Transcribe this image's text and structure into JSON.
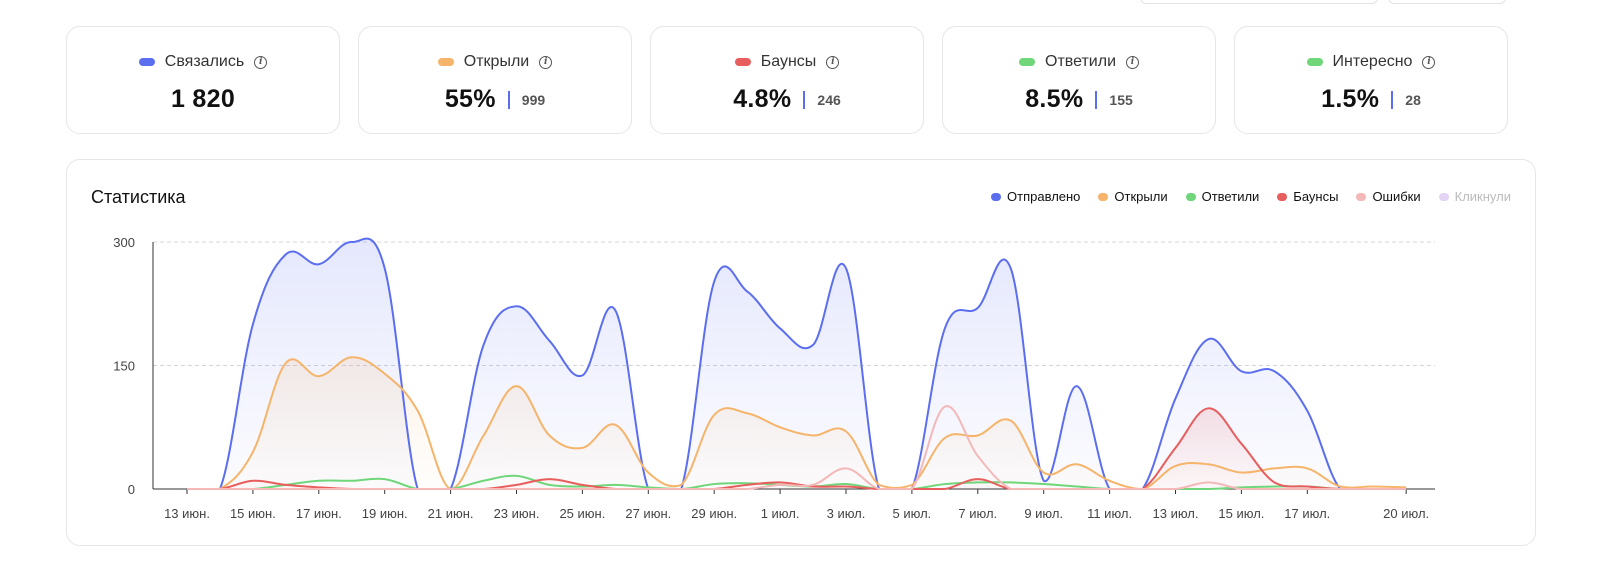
{
  "cards": [
    {
      "label": "Связались",
      "color": "#5b6ef0",
      "value": "1 820",
      "count": ""
    },
    {
      "label": "Открыли",
      "color": "#f5b46a",
      "value": "55%",
      "count": "999"
    },
    {
      "label": "Баунсы",
      "color": "#e85d5d",
      "value": "4.8%",
      "count": "246"
    },
    {
      "label": "Ответили",
      "color": "#6fd67a",
      "value": "8.5%",
      "count": "155"
    },
    {
      "label": "Интересно",
      "color": "#6fd67a",
      "value": "1.5%",
      "count": "28"
    }
  ],
  "panel": {
    "title": "Статистика"
  },
  "chart_data": {
    "type": "area",
    "title": "Статистика",
    "ylim": [
      0,
      300
    ],
    "y_ticks": [
      "0",
      "150",
      "300"
    ],
    "x_tick_labels": [
      "13 июн.",
      "15 июн.",
      "17 июн.",
      "19 июн.",
      "21 июн.",
      "23 июн.",
      "25 июн.",
      "27 июн.",
      "29 июн.",
      "1 июл.",
      "3 июл.",
      "5 июл.",
      "7 июл.",
      "9 июл.",
      "11 июл.",
      "13 июл.",
      "15 июл.",
      "17 июл.",
      "20 июл."
    ],
    "x_tick_days": [
      0,
      2,
      4,
      6,
      8,
      10,
      12,
      14,
      16,
      18,
      20,
      22,
      24,
      26,
      28,
      30,
      32,
      34,
      37
    ],
    "x_day_range": [
      0,
      37.8
    ],
    "grid": true,
    "legend_position": "top-right",
    "legend": [
      {
        "name": "Отправлено",
        "color": "#5b6ef0",
        "muted": false
      },
      {
        "name": "Открыли",
        "color": "#f5b46a",
        "muted": false
      },
      {
        "name": "Ответили",
        "color": "#6fd67a",
        "muted": false
      },
      {
        "name": "Баунсы",
        "color": "#e85d5d",
        "muted": false
      },
      {
        "name": "Ошибки",
        "color": "#f4b8b8",
        "muted": false
      },
      {
        "name": "Кликнули",
        "color": "#e3d3f5",
        "muted": true
      }
    ],
    "series": [
      {
        "name": "Отправлено",
        "color": "#5b6ef0",
        "fill": true,
        "points": [
          [
            0,
            0
          ],
          [
            1,
            0
          ],
          [
            2,
            200
          ],
          [
            3,
            285
          ],
          [
            4,
            273
          ],
          [
            5,
            300
          ],
          [
            6,
            268
          ],
          [
            7,
            0
          ],
          [
            8,
            0
          ],
          [
            9,
            175
          ],
          [
            10,
            222
          ],
          [
            11,
            180
          ],
          [
            12,
            138
          ],
          [
            13,
            217
          ],
          [
            14,
            0
          ],
          [
            15,
            0
          ],
          [
            16,
            252
          ],
          [
            17,
            240
          ],
          [
            18,
            195
          ],
          [
            19,
            175
          ],
          [
            20,
            268
          ],
          [
            21,
            0
          ],
          [
            22,
            0
          ],
          [
            23,
            195
          ],
          [
            24,
            220
          ],
          [
            25,
            268
          ],
          [
            26,
            10
          ],
          [
            27,
            125
          ],
          [
            28,
            0
          ],
          [
            29,
            0
          ],
          [
            30,
            110
          ],
          [
            31,
            182
          ],
          [
            32,
            143
          ],
          [
            33,
            143
          ],
          [
            34,
            95
          ],
          [
            35,
            0
          ],
          [
            36,
            0
          ],
          [
            37,
            0
          ]
        ]
      },
      {
        "name": "Открыли",
        "color": "#f5b46a",
        "fill": true,
        "points": [
          [
            0,
            0
          ],
          [
            1,
            0
          ],
          [
            2,
            45
          ],
          [
            3,
            153
          ],
          [
            4,
            137
          ],
          [
            5,
            160
          ],
          [
            6,
            140
          ],
          [
            7,
            95
          ],
          [
            8,
            0
          ],
          [
            9,
            65
          ],
          [
            10,
            125
          ],
          [
            11,
            65
          ],
          [
            12,
            50
          ],
          [
            13,
            78
          ],
          [
            14,
            20
          ],
          [
            15,
            5
          ],
          [
            16,
            90
          ],
          [
            17,
            92
          ],
          [
            18,
            75
          ],
          [
            19,
            65
          ],
          [
            20,
            70
          ],
          [
            21,
            5
          ],
          [
            22,
            5
          ],
          [
            23,
            62
          ],
          [
            24,
            65
          ],
          [
            25,
            83
          ],
          [
            26,
            20
          ],
          [
            27,
            30
          ],
          [
            28,
            10
          ],
          [
            29,
            0
          ],
          [
            30,
            28
          ],
          [
            31,
            30
          ],
          [
            32,
            20
          ],
          [
            33,
            25
          ],
          [
            34,
            25
          ],
          [
            35,
            3
          ],
          [
            36,
            3
          ],
          [
            37,
            2
          ]
        ]
      },
      {
        "name": "Ответили",
        "color": "#6fd67a",
        "fill": false,
        "points": [
          [
            0,
            0
          ],
          [
            1,
            0
          ],
          [
            2,
            0
          ],
          [
            3,
            5
          ],
          [
            4,
            10
          ],
          [
            5,
            10
          ],
          [
            6,
            12
          ],
          [
            7,
            0
          ],
          [
            8,
            0
          ],
          [
            9,
            10
          ],
          [
            10,
            16
          ],
          [
            11,
            5
          ],
          [
            12,
            3
          ],
          [
            13,
            5
          ],
          [
            14,
            2
          ],
          [
            15,
            0
          ],
          [
            16,
            6
          ],
          [
            17,
            7
          ],
          [
            18,
            5
          ],
          [
            19,
            3
          ],
          [
            20,
            6
          ],
          [
            21,
            0
          ],
          [
            22,
            0
          ],
          [
            23,
            6
          ],
          [
            24,
            8
          ],
          [
            25,
            8
          ],
          [
            26,
            6
          ],
          [
            27,
            3
          ],
          [
            28,
            0
          ],
          [
            29,
            0
          ],
          [
            30,
            0
          ],
          [
            31,
            0
          ],
          [
            32,
            2
          ],
          [
            33,
            3
          ],
          [
            34,
            3
          ],
          [
            35,
            0
          ],
          [
            36,
            0
          ],
          [
            37,
            0
          ]
        ]
      },
      {
        "name": "Баунсы",
        "color": "#e85d5d",
        "fill": true,
        "points": [
          [
            0,
            0
          ],
          [
            1,
            0
          ],
          [
            2,
            10
          ],
          [
            3,
            5
          ],
          [
            4,
            2
          ],
          [
            5,
            0
          ],
          [
            6,
            0
          ],
          [
            7,
            0
          ],
          [
            8,
            0
          ],
          [
            9,
            0
          ],
          [
            10,
            5
          ],
          [
            11,
            12
          ],
          [
            12,
            5
          ],
          [
            13,
            0
          ],
          [
            14,
            0
          ],
          [
            15,
            0
          ],
          [
            16,
            0
          ],
          [
            17,
            5
          ],
          [
            18,
            8
          ],
          [
            19,
            3
          ],
          [
            20,
            3
          ],
          [
            21,
            0
          ],
          [
            22,
            0
          ],
          [
            23,
            0
          ],
          [
            24,
            12
          ],
          [
            25,
            0
          ],
          [
            26,
            0
          ],
          [
            27,
            0
          ],
          [
            28,
            0
          ],
          [
            29,
            0
          ],
          [
            30,
            50
          ],
          [
            31,
            98
          ],
          [
            32,
            55
          ],
          [
            33,
            8
          ],
          [
            34,
            3
          ],
          [
            35,
            0
          ],
          [
            36,
            0
          ],
          [
            37,
            0
          ]
        ]
      },
      {
        "name": "Ошибки",
        "color": "#f4b8b8",
        "fill": false,
        "points": [
          [
            0,
            0
          ],
          [
            1,
            0
          ],
          [
            2,
            0
          ],
          [
            3,
            0
          ],
          [
            4,
            0
          ],
          [
            5,
            0
          ],
          [
            6,
            0
          ],
          [
            7,
            0
          ],
          [
            8,
            0
          ],
          [
            9,
            0
          ],
          [
            10,
            0
          ],
          [
            11,
            0
          ],
          [
            12,
            0
          ],
          [
            13,
            0
          ],
          [
            14,
            0
          ],
          [
            15,
            0
          ],
          [
            16,
            0
          ],
          [
            17,
            0
          ],
          [
            18,
            5
          ],
          [
            19,
            5
          ],
          [
            20,
            25
          ],
          [
            21,
            0
          ],
          [
            22,
            0
          ],
          [
            23,
            100
          ],
          [
            24,
            40
          ],
          [
            25,
            0
          ],
          [
            26,
            0
          ],
          [
            27,
            0
          ],
          [
            28,
            0
          ],
          [
            29,
            0
          ],
          [
            30,
            0
          ],
          [
            31,
            8
          ],
          [
            32,
            0
          ],
          [
            33,
            0
          ],
          [
            34,
            0
          ],
          [
            35,
            0
          ],
          [
            36,
            0
          ],
          [
            37,
            0
          ]
        ]
      }
    ]
  }
}
